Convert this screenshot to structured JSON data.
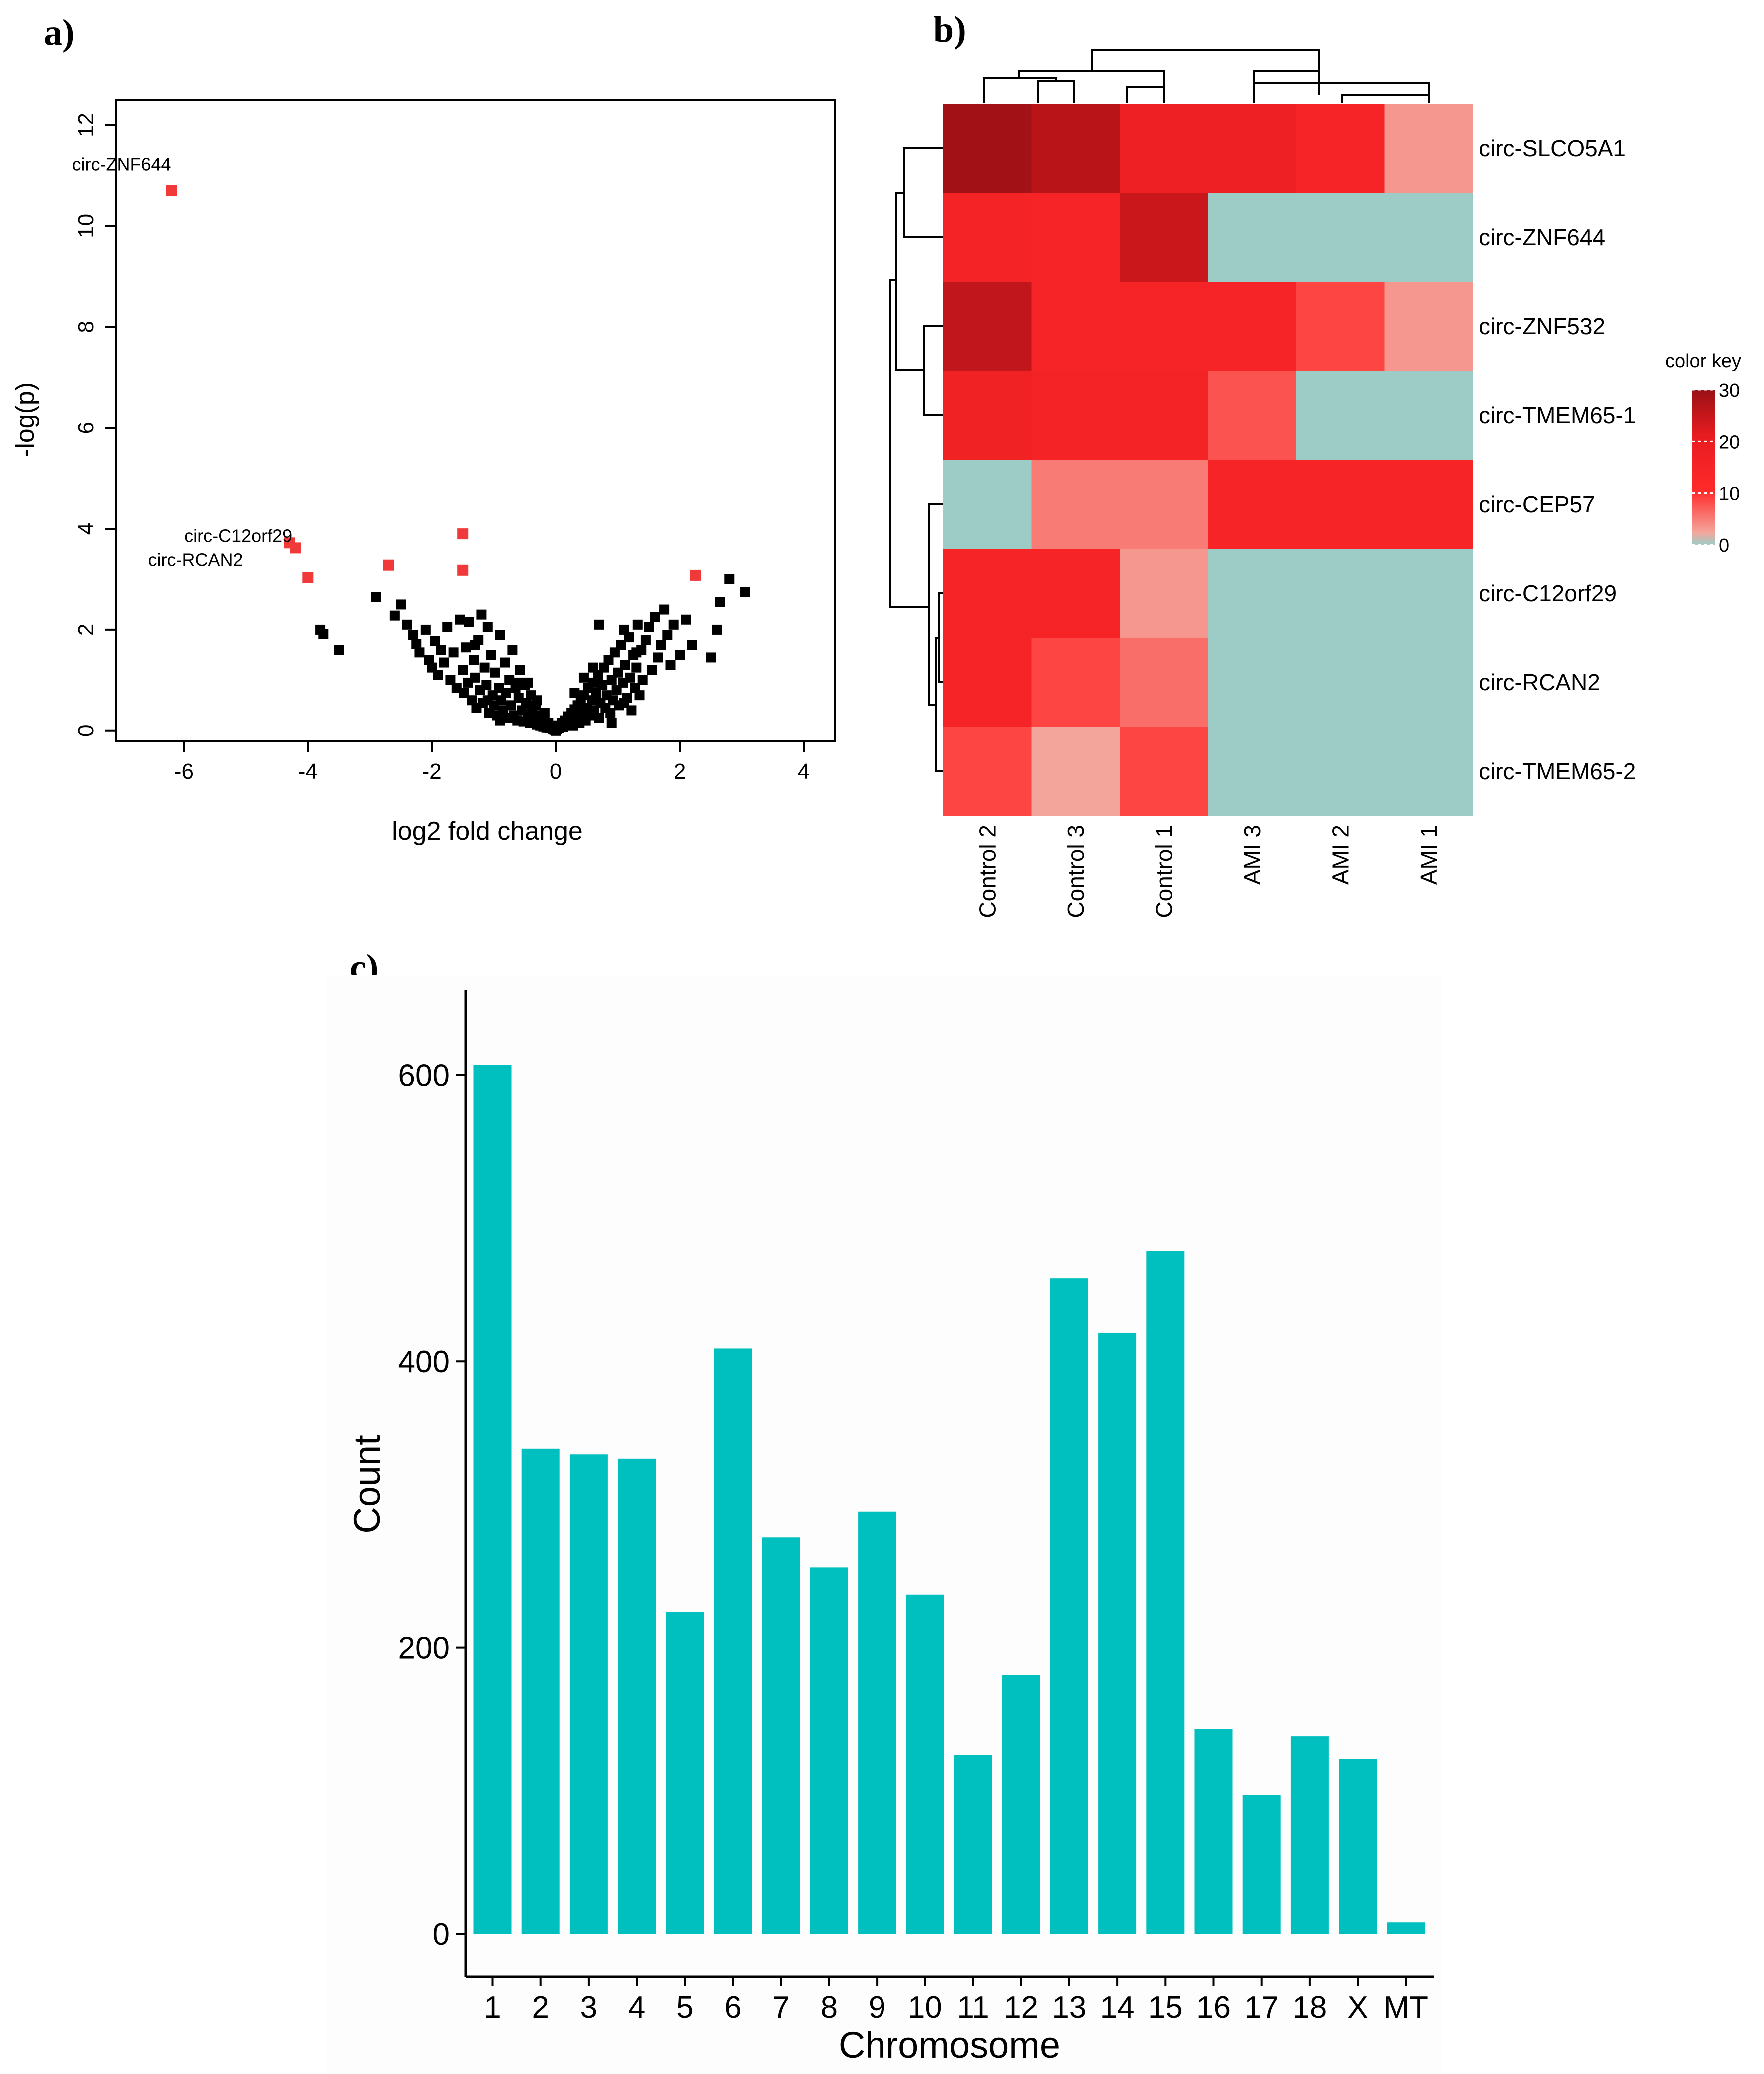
{
  "colors": {
    "red_point": "#f03a3a",
    "black_point": "#000000",
    "bar": "#00bfbf",
    "heat_low": "#9dccc6",
    "heat_mid": "#ff2a2a",
    "heat_high": "#9a1015"
  },
  "panels": {
    "a": {
      "label": "a)"
    },
    "b": {
      "label": "b)",
      "key_title": "color key"
    },
    "c": {
      "label": "c)"
    }
  },
  "chart_data": [
    {
      "id": "volcano",
      "type": "scatter",
      "title": "",
      "xlabel": "log2 fold change",
      "ylabel": "-log(p)",
      "xlim": [
        -7.1,
        4.5
      ],
      "ylim": [
        -0.2,
        12.5
      ],
      "xticks": [
        -6,
        -4,
        -2,
        0,
        2,
        4
      ],
      "yticks": [
        0,
        2,
        4,
        6,
        8,
        10,
        12
      ],
      "highlighted": [
        {
          "x": -6.2,
          "y": 10.7,
          "label": "circ-ZNF644"
        },
        {
          "x": -4.3,
          "y": 3.72,
          "label": "circ-C12orf29"
        },
        {
          "x": -4.2,
          "y": 3.62,
          "label": "circ-RCAN2"
        },
        {
          "x": -4.0,
          "y": 3.03,
          "label": ""
        },
        {
          "x": -2.7,
          "y": 3.28,
          "label": ""
        },
        {
          "x": -1.5,
          "y": 3.9,
          "label": ""
        },
        {
          "x": -1.5,
          "y": 3.18,
          "label": ""
        },
        {
          "x": 2.25,
          "y": 3.08,
          "label": ""
        }
      ],
      "background_points": [
        [
          -3.8,
          2.0
        ],
        [
          -3.75,
          1.92
        ],
        [
          -3.5,
          1.6
        ],
        [
          -2.9,
          2.65
        ],
        [
          -2.6,
          2.28
        ],
        [
          -2.5,
          2.5
        ],
        [
          -2.4,
          2.1
        ],
        [
          -2.3,
          1.9
        ],
        [
          -2.25,
          1.72
        ],
        [
          -2.2,
          1.55
        ],
        [
          -2.1,
          2.0
        ],
        [
          -2.05,
          1.4
        ],
        [
          -2.0,
          1.25
        ],
        [
          -1.95,
          1.78
        ],
        [
          -1.9,
          1.1
        ],
        [
          -1.85,
          1.6
        ],
        [
          -1.8,
          1.35
        ],
        [
          -1.75,
          2.05
        ],
        [
          -1.7,
          1.0
        ],
        [
          -1.65,
          1.55
        ],
        [
          -1.6,
          0.85
        ],
        [
          -1.55,
          2.2
        ],
        [
          -1.5,
          1.2
        ],
        [
          -1.48,
          0.75
        ],
        [
          -1.45,
          1.65
        ],
        [
          -1.42,
          0.95
        ],
        [
          -1.4,
          2.15
        ],
        [
          -1.35,
          0.6
        ],
        [
          -1.32,
          1.4
        ],
        [
          -1.3,
          1.05
        ],
        [
          -1.28,
          0.45
        ],
        [
          -1.25,
          1.8
        ],
        [
          -1.22,
          0.8
        ],
        [
          -1.2,
          2.3
        ],
        [
          -1.18,
          0.55
        ],
        [
          -1.15,
          1.25
        ],
        [
          -1.12,
          0.9
        ],
        [
          -1.1,
          2.05
        ],
        [
          -1.08,
          0.35
        ],
        [
          -1.05,
          1.5
        ],
        [
          -1.02,
          0.7
        ],
        [
          -1.0,
          0.5
        ],
        [
          -0.98,
          1.15
        ],
        [
          -0.95,
          0.3
        ],
        [
          -0.92,
          0.85
        ],
        [
          -0.9,
          1.9
        ],
        [
          -0.88,
          0.6
        ],
        [
          -0.85,
          0.4
        ],
        [
          -0.82,
          1.35
        ],
        [
          -0.8,
          0.75
        ],
        [
          -0.78,
          0.25
        ],
        [
          -0.75,
          1.0
        ],
        [
          -0.72,
          0.5
        ],
        [
          -0.7,
          1.6
        ],
        [
          -0.68,
          0.3
        ],
        [
          -0.65,
          0.85
        ],
        [
          -0.62,
          0.2
        ],
        [
          -0.6,
          0.65
        ],
        [
          -0.58,
          1.2
        ],
        [
          -0.55,
          0.4
        ],
        [
          -0.52,
          0.18
        ],
        [
          -0.5,
          0.9
        ],
        [
          -0.48,
          0.55
        ],
        [
          -0.45,
          0.3
        ],
        [
          -0.42,
          0.15
        ],
        [
          -0.4,
          0.7
        ],
        [
          -0.38,
          0.4
        ],
        [
          -0.35,
          0.2
        ],
        [
          -0.32,
          0.5
        ],
        [
          -0.3,
          0.12
        ],
        [
          -0.28,
          0.3
        ],
        [
          -0.25,
          0.1
        ],
        [
          -0.22,
          0.22
        ],
        [
          -0.2,
          0.08
        ],
        [
          -0.18,
          0.35
        ],
        [
          -0.15,
          0.06
        ],
        [
          -0.12,
          0.15
        ],
        [
          -0.1,
          0.05
        ],
        [
          -0.08,
          0.1
        ],
        [
          -0.05,
          0.03
        ],
        [
          -0.02,
          0.02
        ],
        [
          0.0,
          0.0
        ],
        [
          0.02,
          0.03
        ],
        [
          0.05,
          0.05
        ],
        [
          0.08,
          0.1
        ],
        [
          0.1,
          0.15
        ],
        [
          0.12,
          0.07
        ],
        [
          0.15,
          0.2
        ],
        [
          0.18,
          0.12
        ],
        [
          0.2,
          0.28
        ],
        [
          0.22,
          0.18
        ],
        [
          0.25,
          0.35
        ],
        [
          0.28,
          0.1
        ],
        [
          0.3,
          0.42
        ],
        [
          0.32,
          0.25
        ],
        [
          0.35,
          0.5
        ],
        [
          0.38,
          0.15
        ],
        [
          0.4,
          0.6
        ],
        [
          0.42,
          0.32
        ],
        [
          0.45,
          0.7
        ],
        [
          0.48,
          0.2
        ],
        [
          0.5,
          0.45
        ],
        [
          0.52,
          0.85
        ],
        [
          0.55,
          0.3
        ],
        [
          0.58,
          0.6
        ],
        [
          0.6,
          0.95
        ],
        [
          0.62,
          0.4
        ],
        [
          0.65,
          0.75
        ],
        [
          0.68,
          1.1
        ],
        [
          0.7,
          0.25
        ],
        [
          0.72,
          0.55
        ],
        [
          0.75,
          0.9
        ],
        [
          0.78,
          1.25
        ],
        [
          0.8,
          0.45
        ],
        [
          0.82,
          0.7
        ],
        [
          0.85,
          1.4
        ],
        [
          0.88,
          0.35
        ],
        [
          0.9,
          1.0
        ],
        [
          0.92,
          0.6
        ],
        [
          0.95,
          1.55
        ],
        [
          0.98,
          0.8
        ],
        [
          1.0,
          1.15
        ],
        [
          1.02,
          0.5
        ],
        [
          1.05,
          1.7
        ],
        [
          1.08,
          0.95
        ],
        [
          1.1,
          2.0
        ],
        [
          1.12,
          1.3
        ],
        [
          1.15,
          0.65
        ],
        [
          1.18,
          1.85
        ],
        [
          1.2,
          1.05
        ],
        [
          1.22,
          0.4
        ],
        [
          1.25,
          1.5
        ],
        [
          1.28,
          0.85
        ],
        [
          1.3,
          1.25
        ],
        [
          1.32,
          2.1
        ],
        [
          1.35,
          0.7
        ],
        [
          1.38,
          1.6
        ],
        [
          1.4,
          1.0
        ],
        [
          1.45,
          1.8
        ],
        [
          1.5,
          2.05
        ],
        [
          1.55,
          1.2
        ],
        [
          1.6,
          2.25
        ],
        [
          1.65,
          1.45
        ],
        [
          1.7,
          1.7
        ],
        [
          1.75,
          2.4
        ],
        [
          1.8,
          1.9
        ],
        [
          1.85,
          1.3
        ],
        [
          1.9,
          2.1
        ],
        [
          2.0,
          1.5
        ],
        [
          2.1,
          2.2
        ],
        [
          2.2,
          1.7
        ],
        [
          0.7,
          2.1
        ],
        [
          2.5,
          1.45
        ],
        [
          2.65,
          2.55
        ],
        [
          2.6,
          2.0
        ],
        [
          2.8,
          3.0
        ],
        [
          3.05,
          2.75
        ],
        [
          -0.3,
          0.6
        ],
        [
          0.3,
          0.75
        ],
        [
          -0.6,
          0.95
        ],
        [
          0.6,
          1.25
        ],
        [
          -0.9,
          0.2
        ],
        [
          0.9,
          0.15
        ],
        [
          -1.1,
          0.6
        ],
        [
          1.1,
          0.55
        ],
        [
          -0.45,
          0.95
        ],
        [
          0.45,
          1.05
        ],
        [
          -1.3,
          1.7
        ],
        [
          1.3,
          1.55
        ]
      ]
    },
    {
      "id": "heatmap",
      "type": "heatmap",
      "title": "",
      "columns": [
        "Control 2",
        "Control 3",
        "Control 1",
        "AMI 3",
        "AMI 2",
        "AMI 1"
      ],
      "rows": [
        "circ-SLCO5A1",
        "circ-ZNF644",
        "circ-ZNF532",
        "circ-TMEM65-1",
        "circ-CEP57",
        "circ-C12orf29",
        "circ-RCAN2",
        "circ-TMEM65-2"
      ],
      "values": [
        [
          29,
          26,
          17,
          17,
          14,
          2
        ],
        [
          15,
          14,
          24,
          0,
          0,
          0
        ],
        [
          25,
          14,
          14,
          14,
          8,
          2
        ],
        [
          16,
          15,
          15,
          7,
          0,
          0
        ],
        [
          0,
          4,
          4,
          14,
          14,
          14
        ],
        [
          14,
          14,
          2,
          0,
          0,
          0
        ],
        [
          14,
          8,
          5,
          0,
          0,
          0
        ],
        [
          8,
          1,
          8,
          0,
          0,
          0
        ]
      ],
      "color_key": {
        "ticks": [
          0,
          10,
          20,
          30
        ],
        "range": [
          0,
          30
        ]
      }
    },
    {
      "id": "chromosome_counts",
      "type": "bar",
      "title": "",
      "xlabel": "Chromosome",
      "ylabel": "Count",
      "categories": [
        "1",
        "2",
        "3",
        "4",
        "5",
        "6",
        "7",
        "8",
        "9",
        "10",
        "11",
        "12",
        "13",
        "14",
        "15",
        "16",
        "17",
        "18",
        "X",
        "MT"
      ],
      "values": [
        607,
        339,
        335,
        332,
        225,
        409,
        277,
        256,
        295,
        237,
        125,
        181,
        458,
        420,
        477,
        143,
        97,
        138,
        122,
        8
      ],
      "ylim": [
        -30,
        660
      ],
      "yticks": [
        0,
        200,
        400,
        600
      ]
    }
  ]
}
